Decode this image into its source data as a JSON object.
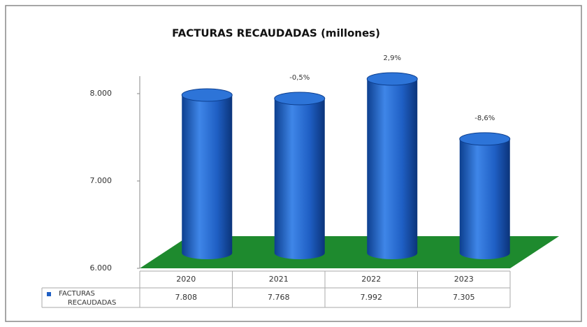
{
  "chart_data": {
    "type": "bar3d",
    "title": "FACTURAS RECAUDADAS (millones)",
    "categories": [
      "2020",
      "2021",
      "2022",
      "2023"
    ],
    "series": [
      {
        "name": "FACTURAS RECAUDADAS",
        "color": "#1f5fc4",
        "values": [
          7808,
          7768,
          7992,
          7305
        ],
        "value_labels": [
          "7.808",
          "7.768",
          "7.992",
          "7.305"
        ]
      }
    ],
    "annotations": [
      null,
      "-0,5%",
      "2,9%",
      "-8,6%"
    ],
    "floor_color": "#1e8a2e",
    "ylim": [
      6000,
      8200
    ],
    "yticks": [
      {
        "value": 6000,
        "label": "6.000"
      },
      {
        "value": 7000,
        "label": "7.000"
      },
      {
        "value": 8000,
        "label": "8.000"
      }
    ]
  }
}
